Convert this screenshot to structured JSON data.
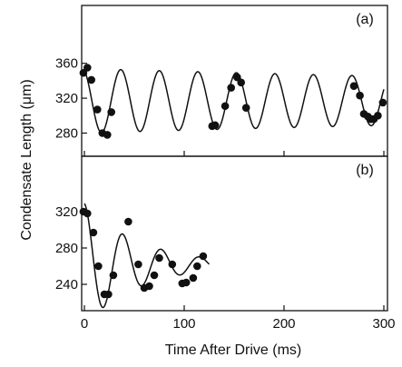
{
  "chart_data": [
    {
      "panel": "(a)",
      "type": "scatter",
      "ylabel": "Condensate Length (μm)",
      "xlabel": "",
      "xlim": [
        0,
        300
      ],
      "ylim": [
        270,
        365
      ],
      "yticks": [
        280,
        320,
        360
      ],
      "xticks": [
        0,
        100,
        200,
        300
      ],
      "points": [
        {
          "x": -1,
          "y": 349
        },
        {
          "x": 3,
          "y": 355
        },
        {
          "x": 7,
          "y": 341
        },
        {
          "x": 13,
          "y": 307
        },
        {
          "x": 18,
          "y": 280
        },
        {
          "x": 23,
          "y": 278
        },
        {
          "x": 27,
          "y": 304
        },
        {
          "x": 128,
          "y": 288
        },
        {
          "x": 131,
          "y": 289
        },
        {
          "x": 141,
          "y": 311
        },
        {
          "x": 147,
          "y": 332
        },
        {
          "x": 153,
          "y": 344
        },
        {
          "x": 157,
          "y": 338
        },
        {
          "x": 162,
          "y": 309
        },
        {
          "x": 270,
          "y": 334
        },
        {
          "x": 276,
          "y": 323
        },
        {
          "x": 280,
          "y": 302
        },
        {
          "x": 284,
          "y": 299
        },
        {
          "x": 287,
          "y": 296
        },
        {
          "x": 290,
          "y": 296
        },
        {
          "x": 294,
          "y": 300
        },
        {
          "x": 299,
          "y": 315
        }
      ],
      "fit": {
        "mean": 317,
        "amplitude": 37,
        "decay_ms": 1100,
        "period_ms": 38.6,
        "phase_rad": 0.35
      }
    },
    {
      "panel": "(b)",
      "type": "scatter",
      "ylabel": "Condensate Length (μm)",
      "xlabel": "Time After Drive (ms)",
      "xlim": [
        0,
        300
      ],
      "ylim": [
        222,
        326
      ],
      "yticks": [
        240,
        280,
        320
      ],
      "xticks": [
        0,
        100,
        200,
        300
      ],
      "xticklabels": [
        "0",
        "100",
        "200",
        "300"
      ],
      "points": [
        {
          "x": -1,
          "y": 320
        },
        {
          "x": 3,
          "y": 318
        },
        {
          "x": 9,
          "y": 297
        },
        {
          "x": 14,
          "y": 260
        },
        {
          "x": 20,
          "y": 229
        },
        {
          "x": 24,
          "y": 229
        },
        {
          "x": 29,
          "y": 250
        },
        {
          "x": 44,
          "y": 309
        },
        {
          "x": 54,
          "y": 262
        },
        {
          "x": 60,
          "y": 236
        },
        {
          "x": 65,
          "y": 238
        },
        {
          "x": 70,
          "y": 250
        },
        {
          "x": 75,
          "y": 269
        },
        {
          "x": 88,
          "y": 262
        },
        {
          "x": 98,
          "y": 241
        },
        {
          "x": 102,
          "y": 242
        },
        {
          "x": 109,
          "y": 247
        },
        {
          "x": 113,
          "y": 260
        },
        {
          "x": 119,
          "y": 271
        }
      ],
      "fit": {
        "x_end": 125,
        "mean": 262,
        "amplitude": 67,
        "decay_ms": 55,
        "period_ms": 38.5,
        "phase_rad": 0.0
      }
    }
  ]
}
